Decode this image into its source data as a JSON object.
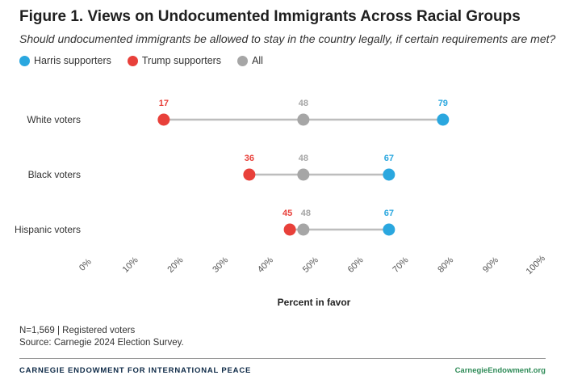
{
  "header": {
    "title": "Figure 1. Views on Undocumented Immigrants Across Racial Groups",
    "subtitle": "Should undocumented immigrants be allowed to stay in the country legally, if certain requirements are met?"
  },
  "legend": [
    {
      "name": "Harris supporters",
      "color": "#2aa7df"
    },
    {
      "name": "Trump supporters",
      "color": "#e8403a"
    },
    {
      "name": "All",
      "color": "#a6a6a6"
    }
  ],
  "chart_data": {
    "type": "dot",
    "title": "Figure 1. Views on Undocumented Immigrants Across Racial Groups",
    "xlabel": "Percent in favor",
    "ylabel": "",
    "xlim": [
      0,
      100
    ],
    "x_ticks": [
      "0%",
      "10%",
      "20%",
      "30%",
      "40%",
      "50%",
      "60%",
      "70%",
      "80%",
      "90%",
      "100%"
    ],
    "categories": [
      "White voters",
      "Black voters",
      "Hispanic voters"
    ],
    "series": [
      {
        "name": "Trump supporters",
        "color": "#e8403a",
        "values": [
          17,
          36,
          45
        ]
      },
      {
        "name": "All",
        "color": "#a6a6a6",
        "values": [
          48,
          48,
          48
        ]
      },
      {
        "name": "Harris supporters",
        "color": "#2aa7df",
        "values": [
          79,
          67,
          67
        ]
      }
    ]
  },
  "footer": {
    "note": "N=1,569 | Registered voters",
    "source": "Source: Carnegie 2024 Election Survey.",
    "brand": "CARNEGIE ENDOWMENT FOR INTERNATIONAL PEACE",
    "site": "CarnegieEndowment.org"
  }
}
